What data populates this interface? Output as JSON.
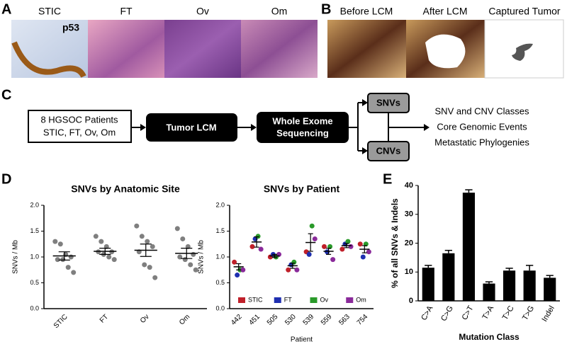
{
  "panel_labels": [
    "A",
    "B",
    "C",
    "D",
    "E"
  ],
  "panel_a": {
    "labels": [
      "STIC",
      "FT",
      "Ov",
      "Om"
    ],
    "inset_label": "p53"
  },
  "panel_b": {
    "labels": [
      "Before LCM",
      "After LCM",
      "Captured Tumor"
    ]
  },
  "flow": {
    "nodes": [
      {
        "lines": [
          "8 HGSOC Patients",
          "STIC, FT, Ov, Om"
        ]
      },
      {
        "lines": [
          "Tumor LCM"
        ]
      },
      {
        "lines": [
          "Whole Exome",
          "Sequencing"
        ]
      },
      {
        "lines": [
          "SNVs"
        ]
      },
      {
        "lines": [
          "CNVs"
        ]
      }
    ],
    "outputs": [
      "SNV and CNV Classes",
      "Core Genomic Events",
      "Metastatic Phylogenies"
    ]
  },
  "chart_data": [
    {
      "type": "scatter",
      "title": "SNVs by Anatomic Site",
      "y_label": "SNVs / Mb",
      "categories": [
        "STIC",
        "FT",
        "Ov",
        "Om"
      ],
      "values": [
        [
          1.3,
          1.25,
          1.05,
          1.0,
          0.95,
          0.95,
          0.8,
          0.7
        ],
        [
          1.4,
          1.3,
          1.2,
          1.1,
          1.1,
          1.05,
          1.0,
          0.95
        ],
        [
          1.6,
          1.4,
          1.3,
          1.2,
          1.1,
          0.85,
          0.8,
          0.6
        ],
        [
          1.55,
          1.35,
          1.2,
          1.05,
          1.0,
          0.95,
          0.85,
          0.75
        ]
      ],
      "color": "#7f7f7f",
      "means": [
        1.02,
        1.11,
        1.13,
        1.07
      ],
      "errors": [
        0.08,
        0.06,
        0.12,
        0.1
      ],
      "ylim": [
        0,
        2
      ],
      "yticks": [
        {
          "value": 0,
          "label": "0.0"
        },
        0.5,
        {
          "value": 1,
          "label": "1.0"
        },
        1.5,
        {
          "value": 2,
          "label": "2.0"
        }
      ]
    },
    {
      "type": "scatter",
      "title": "SNVs by Patient",
      "x_label": "Patient",
      "y_label": "SNVs / Mb",
      "categories": [
        "442",
        "451",
        "505",
        "530",
        "539",
        "559",
        "563",
        "754"
      ],
      "series": [
        {
          "name": "STIC",
          "color": "#c0202a",
          "values": [
            0.9,
            1.2,
            1.0,
            0.75,
            1.1,
            1.2,
            1.15,
            1.25
          ]
        },
        {
          "name": "FT",
          "color": "#1f2fb0",
          "values": [
            0.65,
            1.35,
            1.05,
            0.85,
            1.05,
            1.1,
            1.25,
            1.0
          ]
        },
        {
          "name": "Ov",
          "color": "#2a9a2a",
          "values": [
            0.75,
            1.4,
            1.0,
            0.9,
            1.6,
            1.2,
            1.3,
            1.25
          ]
        },
        {
          "name": "Om",
          "color": "#8a2a9a",
          "values": [
            0.75,
            1.15,
            1.05,
            0.75,
            1.35,
            0.95,
            1.2,
            1.1
          ]
        }
      ],
      "means": [
        0.81,
        1.29,
        1.02,
        0.83,
        1.28,
        1.11,
        1.22,
        1.15
      ],
      "errors": [
        0.06,
        0.1,
        0.03,
        0.05,
        0.17,
        0.06,
        0.04,
        0.07
      ],
      "legend": "bottom",
      "ylim": [
        0,
        2
      ],
      "yticks": [
        {
          "value": 0,
          "label": "0.0"
        },
        0.5,
        {
          "value": 1,
          "label": "1.0"
        },
        1.5,
        {
          "value": 2,
          "label": "2.0"
        }
      ]
    },
    {
      "type": "bar",
      "x_label": "Mutation Class",
      "y_label": "% of all  SNVs &  Indels",
      "categories": [
        "C>A",
        "C>G",
        "C>T",
        "T>A",
        "T>C",
        "T>G",
        "Indel"
      ],
      "values": [
        11.5,
        16.5,
        37.5,
        6,
        10.5,
        10.5,
        8
      ],
      "errors": [
        0.8,
        1,
        1,
        0.6,
        0.8,
        1.8,
        0.8
      ],
      "color": "#000000",
      "ylim": [
        0,
        40
      ],
      "yticks": [
        0,
        10,
        20,
        30,
        40
      ]
    }
  ]
}
